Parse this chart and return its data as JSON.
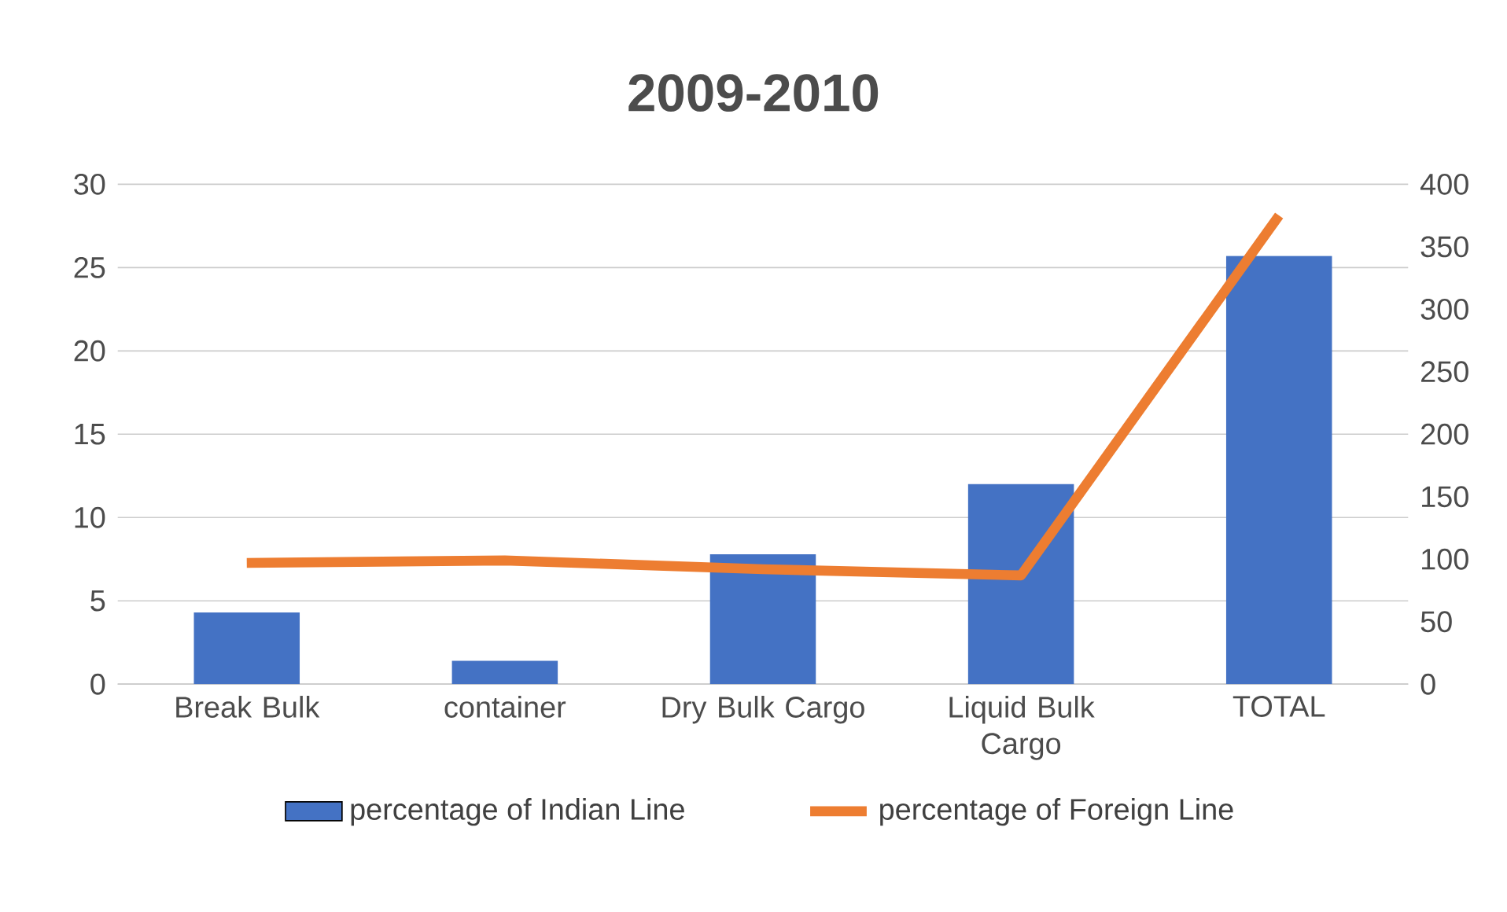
{
  "chart_data": {
    "type": "bar",
    "title": "2009-2010",
    "categories": [
      "Break Bulk",
      "container",
      "Dry Bulk Cargo",
      "Liquid Bulk Cargo",
      "TOTAL"
    ],
    "series": [
      {
        "name": "percentage of Indian Line",
        "color": "#4472c4",
        "values": [
          4.3,
          1.4,
          7.8,
          12.0,
          25.7
        ]
      },
      {
        "name": "percentage of Foreign Line",
        "type": "line",
        "axis": "y2",
        "color": "#ed7d31",
        "values": [
          97,
          99,
          92,
          87,
          375
        ]
      }
    ],
    "ylim": [
      0,
      30
    ],
    "yticks": [
      0,
      5,
      10,
      15,
      20,
      25,
      30
    ],
    "y2lim": [
      0,
      400
    ],
    "y2ticks": [
      0,
      50,
      100,
      150,
      200,
      250,
      300,
      350,
      400
    ],
    "grid": "y",
    "legend": "bottom",
    "marker": "none",
    "line_style": "solid"
  }
}
